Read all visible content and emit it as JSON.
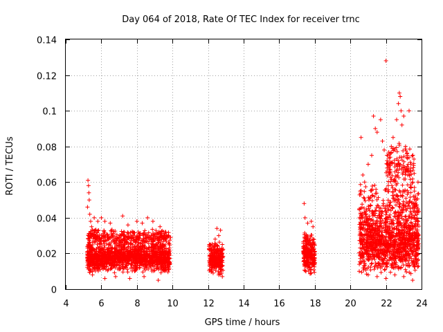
{
  "chart_data": {
    "type": "scatter",
    "title": "Day 064 of 2018, Rate Of TEC Index for receiver trnc",
    "xlabel": "GPS time / hours",
    "ylabel": "ROTI / TECUs",
    "xlim": [
      4,
      24
    ],
    "ylim": [
      0,
      0.14
    ],
    "x_ticks": [
      4,
      6,
      8,
      10,
      12,
      14,
      16,
      18,
      20,
      22,
      24
    ],
    "x_tick_labels": [
      "4",
      "6",
      "8",
      "10",
      "12",
      "14",
      "16",
      "18",
      "20",
      "22",
      "24"
    ],
    "y_ticks": [
      0,
      0.02,
      0.04,
      0.06,
      0.08,
      0.1,
      0.12,
      0.14
    ],
    "y_tick_labels": [
      "0",
      "0.02",
      "0.04",
      "0.06",
      "0.08",
      "0.1",
      "0.12",
      "0.14"
    ],
    "grid": true,
    "marker": "+",
    "color": "#ff0000",
    "series": [
      {
        "name": "ROTI",
        "points": [
          [
            5.25,
            0.061
          ],
          [
            5.28,
            0.058
          ],
          [
            5.3,
            0.054
          ],
          [
            5.32,
            0.05
          ],
          [
            5.22,
            0.046
          ],
          [
            5.35,
            0.042
          ],
          [
            5.4,
            0.038
          ],
          [
            5.45,
            0.035
          ],
          [
            5.5,
            0.033
          ],
          [
            5.6,
            0.04
          ],
          [
            5.8,
            0.038
          ],
          [
            6.0,
            0.04
          ],
          [
            6.2,
            0.038
          ],
          [
            6.5,
            0.037
          ],
          [
            7.2,
            0.041
          ],
          [
            7.5,
            0.036
          ],
          [
            8.0,
            0.038
          ],
          [
            8.3,
            0.037
          ],
          [
            8.6,
            0.04
          ],
          [
            8.9,
            0.038
          ],
          [
            9.3,
            0.035
          ],
          [
            9.6,
            0.032
          ],
          [
            9.9,
            0.029
          ],
          [
            5.5,
            0.008
          ],
          [
            6.2,
            0.006
          ],
          [
            6.8,
            0.007
          ],
          [
            7.6,
            0.006
          ],
          [
            8.4,
            0.007
          ],
          [
            9.2,
            0.005
          ],
          [
            12.5,
            0.034
          ],
          [
            12.7,
            0.033
          ],
          [
            12.6,
            0.03
          ],
          [
            12.4,
            0.028
          ],
          [
            12.2,
            0.022
          ],
          [
            12.8,
            0.025
          ],
          [
            12.2,
            0.01
          ],
          [
            12.6,
            0.008
          ],
          [
            12.8,
            0.007
          ],
          [
            17.4,
            0.048
          ],
          [
            17.45,
            0.04
          ],
          [
            17.6,
            0.037
          ],
          [
            17.8,
            0.038
          ],
          [
            17.9,
            0.035
          ],
          [
            17.5,
            0.01
          ],
          [
            17.8,
            0.009
          ],
          [
            20.6,
            0.085
          ],
          [
            20.7,
            0.064
          ],
          [
            20.8,
            0.06
          ],
          [
            21.0,
            0.07
          ],
          [
            21.2,
            0.075
          ],
          [
            21.3,
            0.097
          ],
          [
            21.4,
            0.09
          ],
          [
            21.5,
            0.088
          ],
          [
            21.7,
            0.095
          ],
          [
            21.8,
            0.083
          ],
          [
            21.9,
            0.078
          ],
          [
            22.0,
            0.128
          ],
          [
            22.1,
            0.075
          ],
          [
            22.2,
            0.07
          ],
          [
            22.3,
            0.08
          ],
          [
            22.4,
            0.085
          ],
          [
            22.5,
            0.078
          ],
          [
            22.6,
            0.095
          ],
          [
            22.7,
            0.104
          ],
          [
            22.75,
            0.11
          ],
          [
            22.8,
            0.108
          ],
          [
            22.85,
            0.1
          ],
          [
            22.9,
            0.092
          ],
          [
            23.0,
            0.097
          ],
          [
            23.1,
            0.08
          ],
          [
            23.2,
            0.075
          ],
          [
            23.3,
            0.1
          ],
          [
            23.4,
            0.07
          ],
          [
            23.5,
            0.06
          ],
          [
            23.6,
            0.055
          ],
          [
            23.7,
            0.05
          ],
          [
            23.8,
            0.06
          ],
          [
            20.5,
            0.01
          ],
          [
            21.0,
            0.008
          ],
          [
            21.5,
            0.007
          ],
          [
            22.0,
            0.006
          ],
          [
            22.5,
            0.008
          ],
          [
            23.0,
            0.007
          ],
          [
            23.5,
            0.005
          ]
        ],
        "clusters": [
          {
            "x_range": [
              5.2,
              9.85
            ],
            "y_range": [
              0.009,
              0.026
            ],
            "count": 1300
          },
          {
            "x_range": [
              5.2,
              9.85
            ],
            "y_range": [
              0.024,
              0.034
            ],
            "count": 350
          },
          {
            "x_range": [
              12.05,
              12.85
            ],
            "y_range": [
              0.008,
              0.027
            ],
            "count": 240
          },
          {
            "x_range": [
              17.35,
              18.0
            ],
            "y_range": [
              0.008,
              0.032
            ],
            "count": 240
          },
          {
            "x_range": [
              20.5,
              23.85
            ],
            "y_range": [
              0.008,
              0.045
            ],
            "count": 1100
          },
          {
            "x_range": [
              20.5,
              23.85
            ],
            "y_range": [
              0.035,
              0.06
            ],
            "count": 220
          },
          {
            "x_range": [
              22.0,
              23.6
            ],
            "y_range": [
              0.05,
              0.085
            ],
            "count": 140
          }
        ]
      }
    ]
  }
}
